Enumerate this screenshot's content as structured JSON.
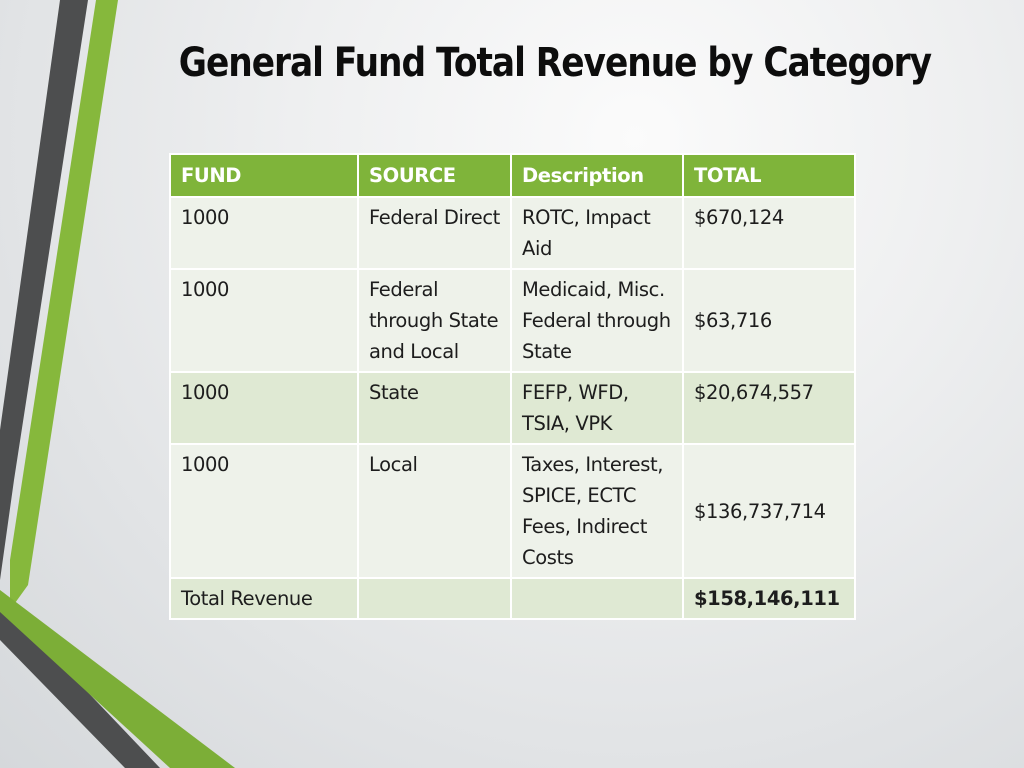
{
  "slide": {
    "title": "General Fund Total Revenue by Category"
  },
  "colors": {
    "accent_green": "#7fb43a",
    "dark_gray": "#4a4a4a",
    "row_alt": "#dfe9d3",
    "row_light": "#eef2ea"
  },
  "table": {
    "headers": [
      "FUND",
      "SOURCE",
      "Description",
      "TOTAL"
    ],
    "rows": [
      {
        "fund": "1000",
        "source": "Federal Direct",
        "description": "ROTC, Impact Aid",
        "total": "$670,124"
      },
      {
        "fund": "1000",
        "source": "Federal through State and Local",
        "description": "Medicaid, Misc. Federal through State",
        "total": "$63,716"
      },
      {
        "fund": "1000",
        "source": "State",
        "description": "FEFP, WFD, TSIA, VPK",
        "total": "$20,674,557"
      },
      {
        "fund": "1000",
        "source": "Local",
        "description": "Taxes, Interest, SPICE, ECTC Fees, Indirect Costs",
        "total": "$136,737,714"
      }
    ],
    "total_row": {
      "label": "Total Revenue",
      "source": "",
      "description": "",
      "total": "$158,146,111"
    }
  }
}
